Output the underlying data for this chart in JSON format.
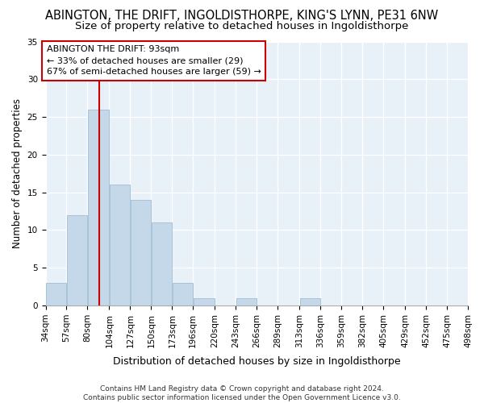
{
  "title": "ABINGTON, THE DRIFT, INGOLDISTHORPE, KING'S LYNN, PE31 6NW",
  "subtitle": "Size of property relative to detached houses in Ingoldisthorpe",
  "xlabel": "Distribution of detached houses by size in Ingoldisthorpe",
  "ylabel": "Number of detached properties",
  "footnote": "Contains HM Land Registry data © Crown copyright and database right 2024.\nContains public sector information licensed under the Open Government Licence v3.0.",
  "bar_lefts": [
    34,
    57,
    80,
    104,
    127,
    150,
    173,
    196,
    220,
    243,
    266,
    289,
    313,
    336,
    359,
    382,
    405,
    429,
    452,
    475
  ],
  "bar_widths": [
    23,
    23,
    24,
    23,
    23,
    23,
    23,
    24,
    23,
    23,
    23,
    24,
    23,
    23,
    23,
    23,
    24,
    23,
    23,
    23
  ],
  "bar_heights": [
    3,
    12,
    26,
    16,
    14,
    11,
    3,
    1,
    0,
    1,
    0,
    0,
    1,
    0,
    0,
    0,
    0,
    0,
    0,
    0
  ],
  "bar_color": "#c5d8ea",
  "bar_edgecolor": "#a8c4d8",
  "vline_x": 93,
  "vline_color": "#cc0000",
  "annotation_text": "ABINGTON THE DRIFT: 93sqm\n← 33% of detached houses are smaller (29)\n67% of semi-detached houses are larger (59) →",
  "annotation_box_color": "#ffffff",
  "annotation_box_edgecolor": "#cc0000",
  "ylim": [
    0,
    35
  ],
  "xlim": [
    34,
    498
  ],
  "yticks": [
    0,
    5,
    10,
    15,
    20,
    25,
    30,
    35
  ],
  "xtick_labels": [
    "34sqm",
    "57sqm",
    "80sqm",
    "104sqm",
    "127sqm",
    "150sqm",
    "173sqm",
    "196sqm",
    "220sqm",
    "243sqm",
    "266sqm",
    "289sqm",
    "313sqm",
    "336sqm",
    "359sqm",
    "382sqm",
    "405sqm",
    "429sqm",
    "452sqm",
    "475sqm",
    "498sqm"
  ],
  "xtick_positions": [
    34,
    57,
    80,
    104,
    127,
    150,
    173,
    196,
    220,
    243,
    266,
    289,
    313,
    336,
    359,
    382,
    405,
    429,
    452,
    475,
    498
  ],
  "bg_color": "#e8f0f8",
  "title_fontsize": 10.5,
  "subtitle_fontsize": 9.5,
  "xlabel_fontsize": 9,
  "ylabel_fontsize": 8.5,
  "tick_fontsize": 7.5,
  "annotation_fontsize": 8,
  "footnote_fontsize": 6.5
}
